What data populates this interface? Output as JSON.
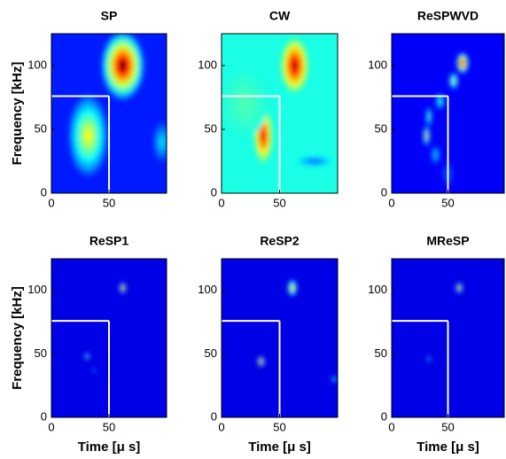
{
  "chart_data": [
    {
      "type": "heatmap",
      "title": "SP",
      "ylabel": "Frequency [kHz]",
      "xlim": [
        0,
        100
      ],
      "ylim": [
        0,
        125
      ],
      "xticks": [
        0,
        50
      ],
      "yticks": [
        0,
        50,
        100
      ],
      "background": 0.15,
      "guide": {
        "x": 50,
        "y": 76
      },
      "peaks": [
        {
          "x": 62,
          "y": 100,
          "sx": 14,
          "sy": 20,
          "level": 1
        },
        {
          "x": 32,
          "y": 45,
          "sx": 13,
          "sy": 24,
          "level": 0.62
        },
        {
          "x": 96,
          "y": 40,
          "sx": 6,
          "sy": 12,
          "level": 0.35
        }
      ]
    },
    {
      "type": "heatmap",
      "title": "CW",
      "xlim": [
        0,
        100
      ],
      "ylim": [
        0,
        125
      ],
      "xticks": [
        0,
        50
      ],
      "yticks": [
        0,
        50,
        100
      ],
      "background": 0.4,
      "guide": {
        "x": 50,
        "y": 76
      },
      "peaks": [
        {
          "x": 63,
          "y": 100,
          "sx": 9,
          "sy": 16,
          "level": 0.95
        },
        {
          "x": 36,
          "y": 45,
          "sx": 6,
          "sy": 16,
          "level": 0.9
        },
        {
          "x": 20,
          "y": 70,
          "sx": 15,
          "sy": 20,
          "level": 0.45
        },
        {
          "x": 80,
          "y": 25,
          "sx": 12,
          "sy": 3,
          "level": 0.2
        }
      ]
    },
    {
      "type": "heatmap",
      "title": "ReSPWVD",
      "xlim": [
        0,
        100
      ],
      "ylim": [
        0,
        125
      ],
      "xticks": [
        0,
        50
      ],
      "yticks": [
        0,
        50,
        100
      ],
      "background": 0.12,
      "guide": {
        "x": 50,
        "y": 76
      },
      "peaks": [
        {
          "x": 63,
          "y": 102,
          "sx": 4,
          "sy": 6,
          "level": 1
        },
        {
          "x": 55,
          "y": 88,
          "sx": 3,
          "sy": 5,
          "level": 0.6
        },
        {
          "x": 43,
          "y": 72,
          "sx": 3,
          "sy": 5,
          "level": 0.45
        },
        {
          "x": 33,
          "y": 60,
          "sx": 2,
          "sy": 6,
          "level": 0.5
        },
        {
          "x": 31,
          "y": 45,
          "sx": 2,
          "sy": 6,
          "level": 0.7
        },
        {
          "x": 39,
          "y": 30,
          "sx": 3,
          "sy": 6,
          "level": 0.35
        },
        {
          "x": 50,
          "y": 15,
          "sx": 4,
          "sy": 8,
          "level": 0.22
        }
      ]
    },
    {
      "type": "heatmap",
      "title": "ReSP1",
      "xlabel": "Time [μ s]",
      "ylabel": "Frequency [kHz]",
      "xlim": [
        0,
        100
      ],
      "ylim": [
        0,
        125
      ],
      "xticks": [
        0,
        50
      ],
      "yticks": [
        0,
        50,
        100
      ],
      "background": 0.1,
      "guide": {
        "x": 50,
        "y": 76
      },
      "peaks": [
        {
          "x": 62,
          "y": 102,
          "sx": 2,
          "sy": 3,
          "level": 1
        },
        {
          "x": 31,
          "y": 48,
          "sx": 1.5,
          "sy": 2,
          "level": 0.6
        },
        {
          "x": 37,
          "y": 37,
          "sx": 1,
          "sy": 2,
          "level": 0.3
        }
      ]
    },
    {
      "type": "heatmap",
      "title": "ReSP2",
      "xlabel": "Time [μ s]",
      "xlim": [
        0,
        100
      ],
      "ylim": [
        0,
        125
      ],
      "xticks": [
        0,
        50
      ],
      "yticks": [
        0,
        50,
        100
      ],
      "background": 0.1,
      "guide": {
        "x": 50,
        "y": 76
      },
      "peaks": [
        {
          "x": 61,
          "y": 102,
          "sx": 3,
          "sy": 5,
          "level": 0.7
        },
        {
          "x": 34,
          "y": 44,
          "sx": 2,
          "sy": 3,
          "level": 1
        },
        {
          "x": 97,
          "y": 30,
          "sx": 1.5,
          "sy": 2,
          "level": 0.5
        }
      ]
    },
    {
      "type": "heatmap",
      "title": "MReSP",
      "xlabel": "Time [μ s]",
      "xlim": [
        0,
        100
      ],
      "ylim": [
        0,
        125
      ],
      "xticks": [
        0,
        50
      ],
      "yticks": [
        0,
        50,
        100
      ],
      "background": 0.1,
      "guide": {
        "x": 50,
        "y": 76
      },
      "peaks": [
        {
          "x": 60,
          "y": 102,
          "sx": 2,
          "sy": 3,
          "level": 0.9
        },
        {
          "x": 33,
          "y": 46,
          "sx": 1,
          "sy": 2,
          "level": 0.5
        }
      ]
    }
  ]
}
